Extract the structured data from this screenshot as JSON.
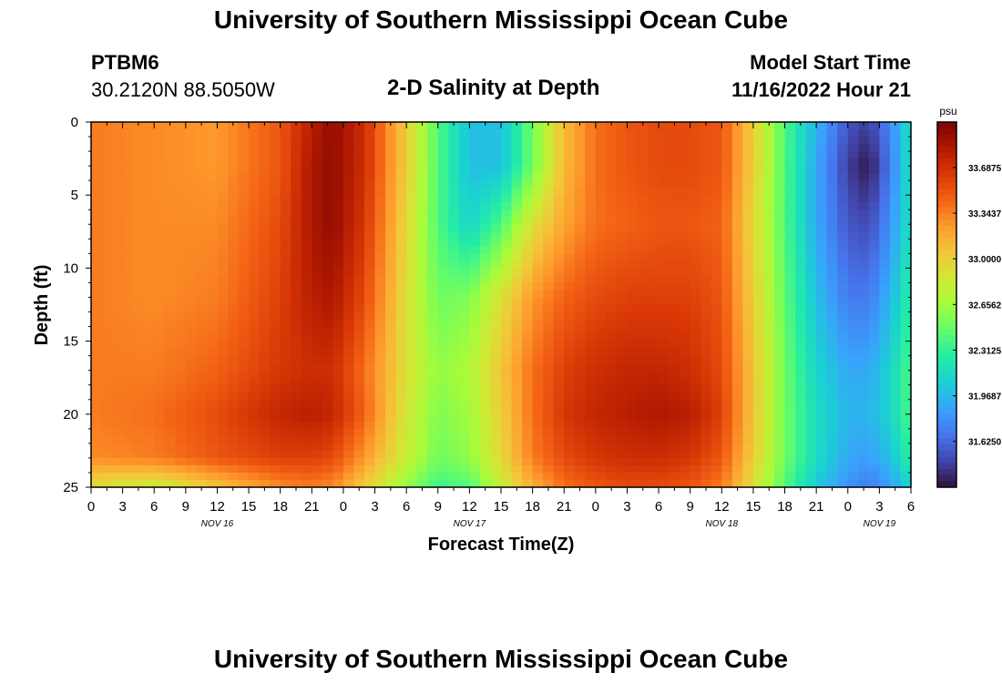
{
  "header": {
    "title": "University of Southern Mississippi Ocean Cube",
    "station_id": "PTBM6",
    "coordinates": "30.2120N  88.5050W",
    "plot_title": "2-D Salinity at Depth",
    "model_start_label": "Model Start Time",
    "model_start_value": "11/16/2022 Hour 21"
  },
  "footer": {
    "title": "University of Southern Mississippi Ocean Cube"
  },
  "chart_data": {
    "type": "heatmap",
    "title": "2-D Salinity at Depth",
    "xlabel": "Forecast Time(Z)",
    "ylabel": "Depth (ft)",
    "y_reversed": true,
    "ylim": [
      0,
      25
    ],
    "y_ticks": [
      "0",
      "5",
      "10",
      "15",
      "20",
      "25"
    ],
    "x_range_hours": [
      0,
      78
    ],
    "x_tick_labels": [
      "0",
      "3",
      "6",
      "9",
      "12",
      "15",
      "18",
      "21",
      "0",
      "3",
      "6",
      "9",
      "12",
      "15",
      "18",
      "21",
      "0",
      "3",
      "6",
      "9",
      "12",
      "15",
      "18",
      "21",
      "0",
      "3",
      "6"
    ],
    "date_labels": [
      {
        "label": "NOV 16",
        "hour": 12
      },
      {
        "label": "NOV 17",
        "hour": 36
      },
      {
        "label": "NOV 18",
        "hour": 60
      },
      {
        "label": "NOV 19",
        "hour": 75
      }
    ],
    "colorbar": {
      "unit": "psu",
      "tick_labels": [
        "33.6875",
        "33.3437",
        "33.0000",
        "32.6562",
        "32.3125",
        "31.9687",
        "31.6250"
      ],
      "range": [
        31.28,
        34.03
      ],
      "colors": [
        "#30123b",
        "#4145ab",
        "#4675ed",
        "#39a2fc",
        "#1bcfd4",
        "#24eca6",
        "#61fc6c",
        "#a4fc3b",
        "#d1e834",
        "#f3c63a",
        "#fe9b2d",
        "#f36315",
        "#d93806",
        "#b11901",
        "#7a0403"
      ]
    },
    "salinity_grid": {
      "x_hours": [
        0,
        6,
        12,
        18,
        21,
        23,
        26,
        30,
        33,
        36,
        39,
        42,
        45,
        48,
        51,
        54,
        57,
        60,
        63,
        66,
        69,
        72,
        74,
        76,
        78
      ],
      "depth_ft": [
        0,
        3,
        7,
        12,
        17,
        20,
        23,
        25
      ],
      "values": [
        [
          33.35,
          33.3,
          33.25,
          33.5,
          33.8,
          33.95,
          33.7,
          33.0,
          32.4,
          32.0,
          32.0,
          32.5,
          33.1,
          33.4,
          33.5,
          33.55,
          33.55,
          33.5,
          33.0,
          32.4,
          31.95,
          31.55,
          31.45,
          31.75,
          32.2
        ],
        [
          33.35,
          33.3,
          33.25,
          33.5,
          33.85,
          33.95,
          33.7,
          33.0,
          32.4,
          32.0,
          32.0,
          32.5,
          33.1,
          33.4,
          33.5,
          33.55,
          33.55,
          33.5,
          33.0,
          32.4,
          31.9,
          31.45,
          31.3,
          31.7,
          32.2
        ],
        [
          33.35,
          33.3,
          33.3,
          33.55,
          33.85,
          33.95,
          33.65,
          32.95,
          32.4,
          32.1,
          32.4,
          32.9,
          33.2,
          33.4,
          33.45,
          33.5,
          33.5,
          33.45,
          32.95,
          32.4,
          31.9,
          31.55,
          31.5,
          31.8,
          32.2
        ],
        [
          33.35,
          33.3,
          33.35,
          33.6,
          33.8,
          33.85,
          33.55,
          32.9,
          32.5,
          32.55,
          32.9,
          33.25,
          33.45,
          33.55,
          33.6,
          33.6,
          33.6,
          33.5,
          33.0,
          32.45,
          32.0,
          31.7,
          31.7,
          31.95,
          32.3
        ],
        [
          33.35,
          33.35,
          33.45,
          33.65,
          33.7,
          33.7,
          33.4,
          32.9,
          32.6,
          32.7,
          33.05,
          33.4,
          33.6,
          33.7,
          33.75,
          33.75,
          33.7,
          33.55,
          33.05,
          32.5,
          32.1,
          31.9,
          31.9,
          32.1,
          32.4
        ],
        [
          33.35,
          33.4,
          33.55,
          33.75,
          33.8,
          33.75,
          33.45,
          32.85,
          32.55,
          32.65,
          33.0,
          33.4,
          33.65,
          33.75,
          33.8,
          33.85,
          33.8,
          33.6,
          33.05,
          32.5,
          32.15,
          31.95,
          31.95,
          32.1,
          32.4
        ],
        [
          33.3,
          33.35,
          33.5,
          33.6,
          33.6,
          33.55,
          33.25,
          32.8,
          32.5,
          32.6,
          32.95,
          33.35,
          33.55,
          33.65,
          33.7,
          33.7,
          33.65,
          33.5,
          33.0,
          32.5,
          32.15,
          31.9,
          31.85,
          32.0,
          32.3
        ],
        [
          32.9,
          32.8,
          33.05,
          33.3,
          33.35,
          33.3,
          33.0,
          32.6,
          32.35,
          32.4,
          32.8,
          33.15,
          33.4,
          33.5,
          33.55,
          33.55,
          33.5,
          33.35,
          32.9,
          32.4,
          32.05,
          31.8,
          31.7,
          31.85,
          32.1
        ]
      ]
    }
  }
}
